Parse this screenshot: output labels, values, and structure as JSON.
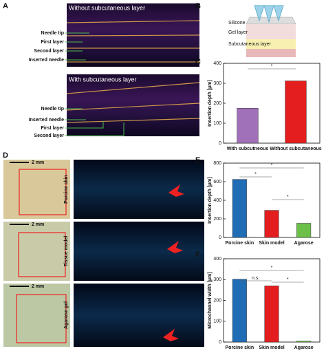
{
  "panels": [
    "A",
    "B",
    "C",
    "D",
    "E",
    "F"
  ],
  "panel_a": {
    "top_title": "Without subcutaneous layer",
    "top_labels": [
      "Needle tip",
      "First layer",
      "Second layer",
      "Inserted needle"
    ],
    "bottom_title": "With subcutaneous layer",
    "bottom_labels": [
      "Needle tip",
      "Inserted needle",
      "First layer",
      "Second layer"
    ]
  },
  "panel_b": {
    "labels": [
      "Silicone",
      "Gel layer",
      "Subcutaneous layer"
    ]
  },
  "panel_d": {
    "scale": "2 mm",
    "rows": [
      "Porcine skin",
      "Tissue model",
      "Agarose gel"
    ]
  },
  "chart_data": [
    {
      "type": "bar",
      "ylabel": "Insertion depth [μm]",
      "categories": [
        "With subcutneous",
        "Without subcutaneous"
      ],
      "values": [
        175,
        312
      ],
      "colors": [
        "#a070b8",
        "#e41e1e"
      ],
      "ylim": [
        0,
        400
      ],
      "yticks": [
        0,
        100,
        200,
        300,
        400
      ],
      "significance": [
        "*"
      ]
    },
    {
      "type": "bar",
      "ylabel": "Insertion depth [μm]",
      "categories": [
        "Porcine skin",
        "Skin model",
        "Agarose"
      ],
      "values": [
        625,
        292,
        152
      ],
      "colors": [
        "#1f6db4",
        "#e41e1e",
        "#6cc04a"
      ],
      "ylim": [
        0,
        800
      ],
      "yticks": [
        0,
        200,
        400,
        600,
        800
      ],
      "significance": [
        "*",
        "*",
        "*"
      ]
    },
    {
      "type": "bar",
      "ylabel": "Microchannel width [μm]",
      "categories": [
        "Porcine skin",
        "Skin model",
        "Agarose"
      ],
      "values": [
        302,
        270,
        5
      ],
      "colors": [
        "#1f6db4",
        "#e41e1e",
        "#6cc04a"
      ],
      "ylim": [
        0,
        400
      ],
      "yticks": [
        0,
        100,
        200,
        300,
        400
      ],
      "significance": [
        "n.s.",
        "*",
        "*"
      ]
    }
  ]
}
